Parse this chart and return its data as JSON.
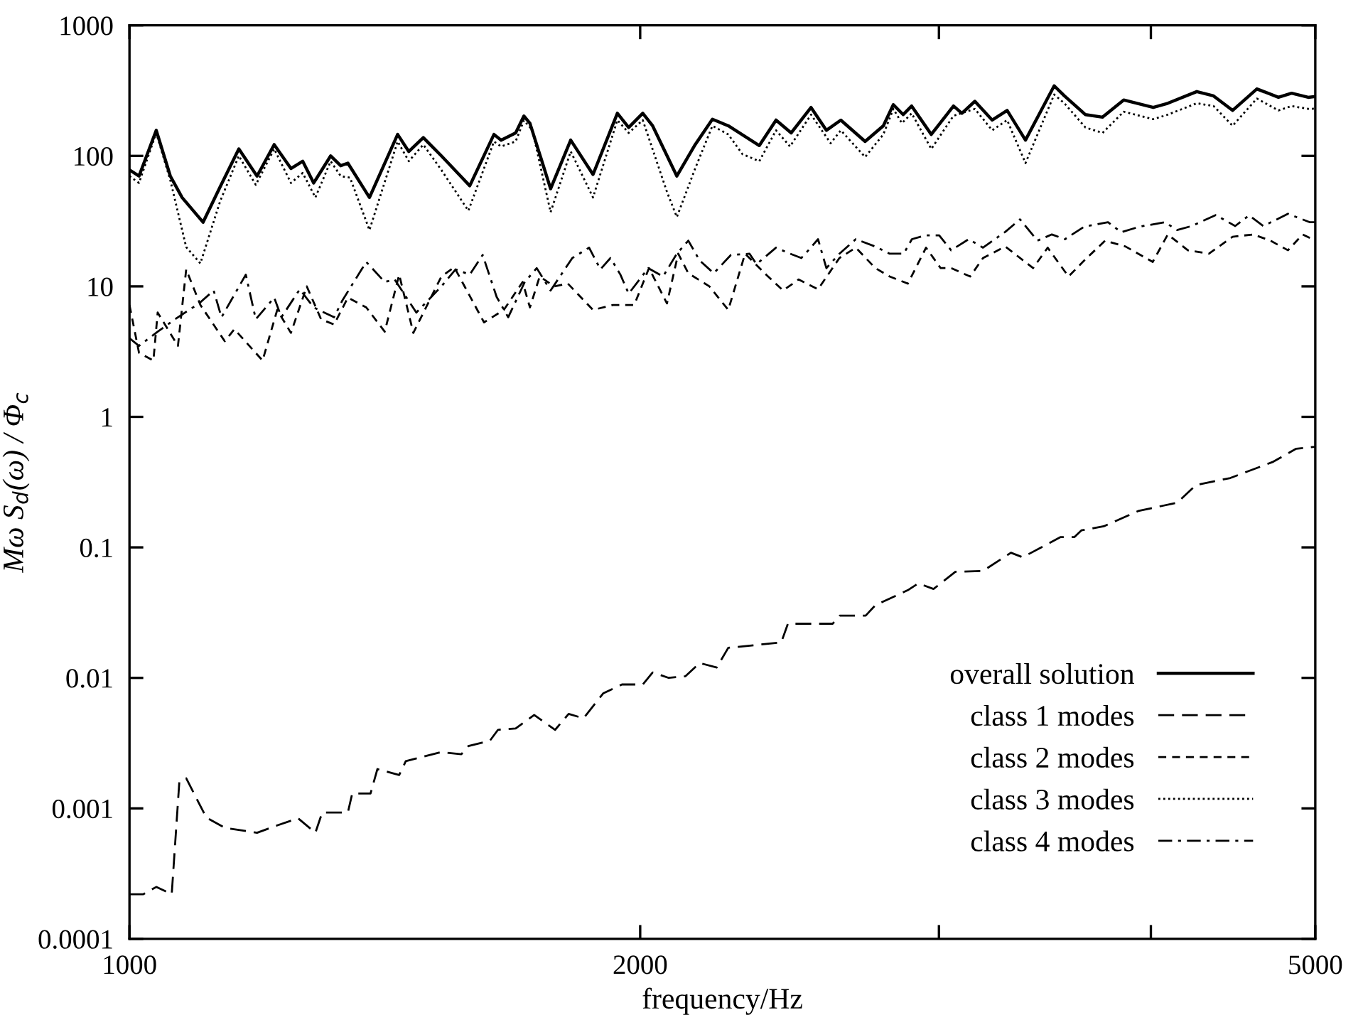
{
  "chart_data": {
    "type": "line",
    "xlabel": "frequency/Hz",
    "ylabel": "Mω S$_{d}$(ω) / Φ$_{c}$",
    "log": "xy",
    "xlim": [
      1000,
      5000
    ],
    "ylim": [
      0.0001,
      1000
    ],
    "xticks": [
      1000,
      2000,
      {
        "value": 3000,
        "label": null
      },
      {
        "value": 4000,
        "label": null
      },
      5000
    ],
    "yticks": [
      0.0001,
      0.001,
      0.01,
      0.1,
      1,
      10,
      100,
      1000
    ],
    "grid": false,
    "legend": "bottom right",
    "series": [
      {
        "name": "overall solution",
        "color": "#000000",
        "line_style": "solid",
        "x": [
          1000,
          1013,
          1037,
          1057,
          1074,
          1105,
          1131,
          1160,
          1189,
          1217,
          1245,
          1265,
          1284,
          1314,
          1332,
          1345,
          1385,
          1439,
          1461,
          1490,
          1527,
          1587,
          1640,
          1656,
          1689,
          1708,
          1722,
          1771,
          1820,
          1876,
          1939,
          1969,
          2007,
          2034,
          2102,
          2155,
          2206,
          2254,
          2351,
          2405,
          2455,
          2522,
          2575,
          2626,
          2714,
          2782,
          2820,
          2858,
          2891,
          2969,
          3060,
          3095,
          3150,
          3225,
          3291,
          3374,
          3508,
          3557,
          3660,
          3746,
          3855,
          4013,
          4093,
          4257,
          4355,
          4469,
          4619,
          4756,
          4842,
          4952,
          5000
        ],
        "values": [
          78,
          70,
          157,
          70,
          48,
          31,
          58,
          113,
          70,
          122,
          80,
          91,
          62,
          100,
          84,
          88,
          48,
          146,
          108,
          138,
          100,
          59,
          146,
          132,
          150,
          202,
          178,
          56,
          132,
          72,
          212,
          165,
          212,
          170,
          70,
          122,
          191,
          170,
          120,
          188,
          150,
          235,
          157,
          188,
          129,
          170,
          247,
          207,
          241,
          146,
          241,
          212,
          262,
          188,
          223,
          132,
          344,
          288,
          207,
          198,
          268,
          235,
          253,
          311,
          288,
          223,
          326,
          281,
          302,
          281,
          285
        ]
      },
      {
        "name": "class 1 modes",
        "color": "#000000",
        "line_style": "long dashed",
        "x": [
          1000,
          1019,
          1037,
          1059,
          1070,
          1080,
          1110,
          1138,
          1189,
          1222,
          1257,
          1287,
          1299,
          1345,
          1353,
          1387,
          1400,
          1442,
          1455,
          1527,
          1569,
          1584,
          1631,
          1649,
          1689,
          1732,
          1782,
          1815,
          1852,
          1902,
          1951,
          2007,
          2034,
          2079,
          2127,
          2168,
          2219,
          2254,
          2422,
          2444,
          2597,
          2622,
          2716,
          2752,
          2876,
          2917,
          2978,
          3068,
          3185,
          3308,
          3361,
          3539,
          3606,
          3640,
          3752,
          3932,
          4145,
          4252,
          4455,
          4717,
          4872,
          5000
        ],
        "values": [
          0.00022,
          0.00022,
          0.00025,
          0.00022,
          0.0016,
          0.0017,
          0.00085,
          0.00071,
          0.00065,
          0.00074,
          0.00084,
          0.00065,
          0.00093,
          0.00093,
          0.0013,
          0.0013,
          0.002,
          0.0018,
          0.0023,
          0.0027,
          0.0026,
          0.003,
          0.0033,
          0.004,
          0.0041,
          0.0052,
          0.004,
          0.0053,
          0.0049,
          0.0076,
          0.0089,
          0.0089,
          0.011,
          0.01,
          0.0103,
          0.013,
          0.012,
          0.017,
          0.0187,
          0.026,
          0.026,
          0.03,
          0.03,
          0.036,
          0.047,
          0.053,
          0.048,
          0.065,
          0.066,
          0.091,
          0.084,
          0.12,
          0.12,
          0.135,
          0.145,
          0.19,
          0.22,
          0.3,
          0.34,
          0.45,
          0.57,
          0.59
        ]
      },
      {
        "name": "class 2 modes",
        "color": "#000000",
        "line_style": "dashed",
        "x": [
          1000,
          1013,
          1033,
          1039,
          1068,
          1080,
          1101,
          1138,
          1153,
          1198,
          1222,
          1245,
          1272,
          1297,
          1320,
          1345,
          1379,
          1414,
          1442,
          1470,
          1527,
          1554,
          1618,
          1662,
          1705,
          1722,
          1745,
          1780,
          1813,
          1876,
          1927,
          1984,
          2024,
          2074,
          2106,
          2135,
          2197,
          2254,
          2306,
          2373,
          2428,
          2480,
          2546,
          2621,
          2680,
          2752,
          2806,
          2876,
          2948,
          3007,
          3050,
          3130,
          3185,
          3283,
          3409,
          3477,
          3577,
          3654,
          3759,
          3865,
          4010,
          4093,
          4206,
          4328,
          4469,
          4596,
          4705,
          4818,
          4915,
          5000
        ],
        "values": [
          7.2,
          3.1,
          2.7,
          6.3,
          3.5,
          13.5,
          7.2,
          3.8,
          4.7,
          2.7,
          6.6,
          4.4,
          10,
          5.6,
          5.1,
          8.2,
          6.9,
          4.5,
          12.3,
          4.4,
          11.9,
          14,
          5.3,
          6.6,
          10.8,
          6.9,
          11.9,
          10,
          10.5,
          6.6,
          7.2,
          7.2,
          13.8,
          7.4,
          17.8,
          12.6,
          10,
          6.6,
          17.8,
          12.3,
          9.3,
          11.3,
          9.5,
          16.5,
          19.8,
          13.8,
          11.9,
          10.5,
          19.8,
          13.8,
          13.8,
          11.9,
          16.5,
          20.2,
          13.8,
          19.8,
          11.9,
          15.8,
          22.4,
          20.2,
          15.4,
          25,
          18.9,
          17.8,
          24,
          25,
          22.4,
          18.9,
          25,
          22.4
        ]
      },
      {
        "name": "class 3 modes",
        "color": "#000000",
        "line_style": "dotted",
        "x": [
          1000,
          1013,
          1037,
          1057,
          1080,
          1101,
          1131,
          1160,
          1187,
          1217,
          1245,
          1265,
          1287,
          1314,
          1332,
          1349,
          1385,
          1439,
          1461,
          1490,
          1527,
          1584,
          1640,
          1656,
          1689,
          1708,
          1728,
          1771,
          1820,
          1876,
          1939,
          1969,
          2007,
          2074,
          2102,
          2155,
          2206,
          2254,
          2298,
          2351,
          2405,
          2451,
          2522,
          2590,
          2626,
          2714,
          2782,
          2820,
          2853,
          2891,
          2969,
          3060,
          3150,
          3225,
          3291,
          3374,
          3508,
          3557,
          3660,
          3746,
          3855,
          4013,
          4093,
          4257,
          4355,
          4469,
          4619,
          4756,
          4842,
          4952,
          5000
        ],
        "values": [
          70,
          62,
          150,
          65,
          20,
          15,
          45,
          100,
          60,
          113,
          62,
          74,
          48,
          91,
          70,
          68,
          27,
          129,
          91,
          122,
          78,
          38,
          129,
          118,
          129,
          187,
          157,
          37,
          108,
          48,
          188,
          150,
          188,
          53,
          34,
          80,
          170,
          146,
          103,
          91,
          157,
          118,
          207,
          125,
          157,
          98,
          146,
          229,
          178,
          212,
          113,
          203,
          229,
          157,
          188,
          88,
          295,
          253,
          165,
          150,
          218,
          191,
          207,
          253,
          241,
          170,
          275,
          223,
          241,
          229,
          230
        ]
      },
      {
        "name": "class 4 modes",
        "color": "#000000",
        "line_style": "dashdot",
        "x": [
          1000,
          1013,
          1039,
          1068,
          1099,
          1121,
          1133,
          1171,
          1187,
          1217,
          1229,
          1260,
          1284,
          1320,
          1335,
          1379,
          1414,
          1433,
          1476,
          1527,
          1557,
          1587,
          1615,
          1646,
          1672,
          1710,
          1738,
          1771,
          1824,
          1866,
          1895,
          1921,
          1947,
          1969,
          2022,
          2063,
          2102,
          2135,
          2168,
          2210,
          2262,
          2320,
          2342,
          2405,
          2451,
          2489,
          2513,
          2546,
          2575,
          2621,
          2680,
          2752,
          2806,
          2860,
          2892,
          2945,
          3001,
          3050,
          3124,
          3185,
          3283,
          3349,
          3429,
          3497,
          3560,
          3654,
          3774,
          3842,
          3940,
          4077,
          4145,
          4227,
          4369,
          4485,
          4570,
          4660,
          4818,
          4964,
          5000
        ],
        "values": [
          4.0,
          3.5,
          4.5,
          5.8,
          7.4,
          9.3,
          5.8,
          12.3,
          5.6,
          8.2,
          5.8,
          9.5,
          6.9,
          5.8,
          7.8,
          15.4,
          10.8,
          11.3,
          6.3,
          10,
          13.5,
          12.3,
          17.4,
          8.3,
          5.8,
          10.8,
          13.8,
          9.3,
          16.5,
          19.8,
          13.5,
          16.5,
          12.3,
          8.8,
          13.8,
          11.9,
          17.8,
          22.4,
          15.8,
          12.6,
          17.4,
          17.8,
          14.8,
          19.8,
          17.8,
          16.5,
          18.9,
          23,
          13.8,
          17.8,
          23,
          20.2,
          17.8,
          17.8,
          23,
          24.6,
          24.6,
          18.9,
          23,
          19.8,
          26.2,
          32.6,
          22.4,
          25,
          23,
          28.7,
          31,
          26,
          28.7,
          31,
          27,
          29,
          35.2,
          29,
          35,
          29,
          36,
          31,
          31
        ]
      }
    ]
  }
}
